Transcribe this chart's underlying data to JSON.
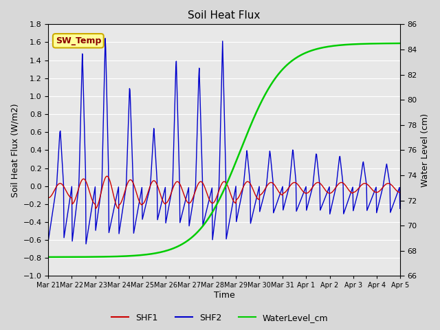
{
  "title": "Soil Heat Flux",
  "ylabel_left": "Soil Heat Flux (W/m2)",
  "ylabel_right": "Water Level (cm)",
  "xlabel": "Time",
  "ylim_left": [
    -1.0,
    1.8
  ],
  "ylim_right": [
    66,
    86
  ],
  "yticks_left": [
    -1.0,
    -0.8,
    -0.6,
    -0.4,
    -0.2,
    0.0,
    0.2,
    0.4,
    0.6,
    0.8,
    1.0,
    1.2,
    1.4,
    1.6,
    1.8
  ],
  "yticks_right": [
    66,
    68,
    70,
    72,
    74,
    76,
    78,
    80,
    82,
    84,
    86
  ],
  "xtick_labels": [
    "Mar 21",
    "Mar 22",
    "Mar 23",
    "Mar 24",
    "Mar 25",
    "Mar 26",
    "Mar 27",
    "Mar 28",
    "Mar 29",
    "Mar 30",
    "Mar 31",
    "Apr 1",
    "Apr 2",
    "Apr 3",
    "Apr 4",
    "Apr 5"
  ],
  "background_color": "#e8e8e8",
  "grid_color": "#ffffff",
  "shf1_color": "#cc0000",
  "shf2_color": "#0000cc",
  "water_color": "#00cc00",
  "annotation_text": "SW_Temp",
  "annotation_bg": "#ffff99",
  "annotation_border": "#ccaa00",
  "legend_labels": [
    "SHF1",
    "SHF2",
    "WaterLevel_cm"
  ],
  "fig_width": 6.4,
  "fig_height": 4.8,
  "fig_dpi": 100
}
